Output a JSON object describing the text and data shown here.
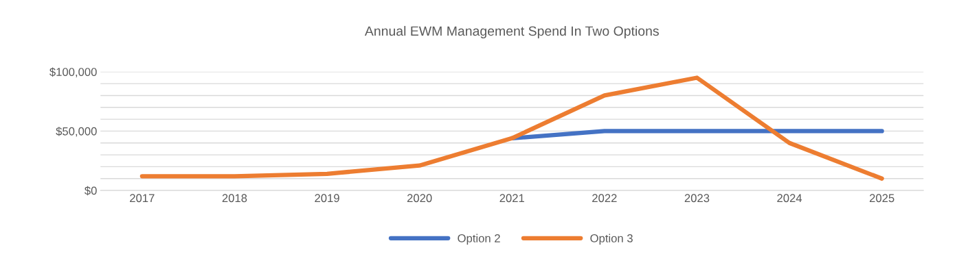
{
  "chart_data": {
    "type": "line",
    "title": "Annual EWM Management Spend In Two Options",
    "categories": [
      "2017",
      "2018",
      "2019",
      "2020",
      "2021",
      "2022",
      "2023",
      "2024",
      "2025"
    ],
    "series": [
      {
        "name": "Option 2",
        "color": "#4472c4",
        "values": [
          null,
          null,
          null,
          null,
          44000,
          50000,
          50000,
          50000,
          50000
        ]
      },
      {
        "name": "Option 3",
        "color": "#ed7d31",
        "values": [
          12000,
          12000,
          14000,
          21000,
          44000,
          80000,
          95000,
          40000,
          10000
        ]
      }
    ],
    "ylim": [
      0,
      100000
    ],
    "yticks": [
      {
        "value": 0,
        "label": "$0"
      },
      {
        "value": 10000,
        "label": null
      },
      {
        "value": 20000,
        "label": null
      },
      {
        "value": 30000,
        "label": null
      },
      {
        "value": 40000,
        "label": null
      },
      {
        "value": 50000,
        "label": "$50,000"
      },
      {
        "value": 60000,
        "label": null
      },
      {
        "value": 70000,
        "label": null
      },
      {
        "value": 80000,
        "label": null
      },
      {
        "value": 90000,
        "label": null
      },
      {
        "value": 100000,
        "label": "$100,000"
      }
    ],
    "grid": "y",
    "legend": "bottom",
    "marker": "none",
    "line_style": "solid"
  }
}
